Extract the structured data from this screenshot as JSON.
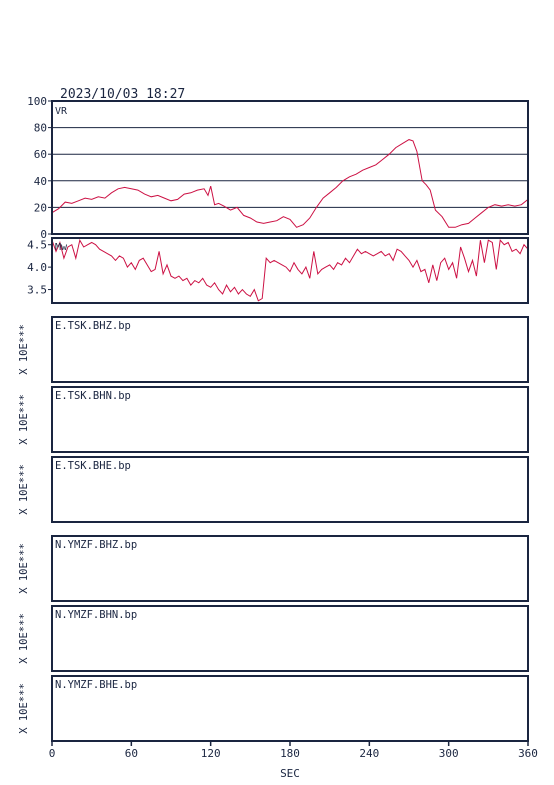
{
  "header": {
    "timestamp": "2023/10/03  18:27"
  },
  "colors": {
    "frame": "#1a2540",
    "trace": "#cc1144",
    "grid": "#1a2540",
    "background": "#ffffff"
  },
  "x_axis": {
    "label": "SEC",
    "ticks": [
      "0",
      "60",
      "120",
      "180",
      "240",
      "300",
      "360"
    ]
  },
  "chart_data": [
    {
      "type": "line",
      "label": "VR",
      "ylim": [
        0,
        100
      ],
      "y_ticks": [
        "0",
        "20",
        "40",
        "60",
        "80",
        "100"
      ],
      "grid": true,
      "xlim": [
        0,
        360
      ],
      "x": [
        0,
        5,
        10,
        15,
        20,
        25,
        30,
        35,
        40,
        45,
        50,
        55,
        60,
        65,
        70,
        75,
        80,
        85,
        90,
        95,
        100,
        105,
        110,
        115,
        118,
        120,
        123,
        126,
        130,
        135,
        140,
        145,
        150,
        155,
        160,
        165,
        170,
        175,
        180,
        185,
        190,
        195,
        200,
        205,
        210,
        215,
        220,
        225,
        230,
        235,
        240,
        245,
        250,
        255,
        260,
        265,
        270,
        273,
        276,
        280,
        283,
        286,
        290,
        295,
        300,
        305,
        310,
        315,
        320,
        325,
        330,
        335,
        340,
        345,
        350,
        355,
        360
      ],
      "y": [
        16,
        19,
        24,
        23,
        25,
        27,
        26,
        28,
        27,
        31,
        34,
        35,
        34,
        33,
        30,
        28,
        29,
        27,
        25,
        26,
        30,
        31,
        33,
        34,
        29,
        36,
        22,
        23,
        21,
        18,
        20,
        14,
        12,
        9,
        8,
        9,
        10,
        13,
        11,
        5,
        7,
        12,
        20,
        27,
        31,
        35,
        40,
        43,
        45,
        48,
        50,
        52,
        56,
        60,
        65,
        68,
        71,
        70,
        62,
        40,
        37,
        33,
        18,
        13,
        5,
        5,
        7,
        8,
        12,
        16,
        20,
        22,
        21,
        22,
        21,
        22,
        26
      ]
    },
    {
      "type": "line",
      "label": "Mw",
      "ylim": [
        3.2,
        4.65
      ],
      "y_ticks": [
        "3.5",
        "4.0",
        "4.5"
      ],
      "grid": false,
      "xlim": [
        0,
        360
      ],
      "x": [
        0,
        3,
        6,
        9,
        12,
        15,
        18,
        21,
        24,
        27,
        30,
        33,
        36,
        39,
        42,
        45,
        48,
        51,
        54,
        57,
        60,
        63,
        66,
        69,
        72,
        75,
        78,
        81,
        84,
        87,
        90,
        93,
        96,
        99,
        102,
        105,
        108,
        111,
        114,
        117,
        120,
        123,
        126,
        129,
        132,
        135,
        138,
        141,
        144,
        147,
        150,
        153,
        156,
        159,
        162,
        165,
        168,
        171,
        174,
        177,
        180,
        183,
        186,
        189,
        192,
        195,
        198,
        201,
        204,
        207,
        210,
        213,
        216,
        219,
        222,
        225,
        228,
        231,
        234,
        237,
        240,
        243,
        246,
        249,
        252,
        255,
        258,
        261,
        264,
        267,
        270,
        273,
        276,
        279,
        282,
        285,
        288,
        291,
        294,
        297,
        300,
        303,
        306,
        309,
        312,
        315,
        318,
        321,
        324,
        327,
        330,
        333,
        336,
        339,
        342,
        345,
        348,
        351,
        354,
        357,
        360
      ],
      "y": [
        4.6,
        4.35,
        4.55,
        4.2,
        4.45,
        4.5,
        4.2,
        4.6,
        4.45,
        4.5,
        4.55,
        4.5,
        4.4,
        4.35,
        4.3,
        4.25,
        4.15,
        4.25,
        4.2,
        4.0,
        4.1,
        3.95,
        4.15,
        4.2,
        4.05,
        3.9,
        3.95,
        4.35,
        3.85,
        4.05,
        3.8,
        3.75,
        3.8,
        3.7,
        3.75,
        3.6,
        3.7,
        3.65,
        3.75,
        3.6,
        3.55,
        3.65,
        3.5,
        3.4,
        3.6,
        3.45,
        3.55,
        3.4,
        3.5,
        3.4,
        3.35,
        3.5,
        3.25,
        3.3,
        4.2,
        4.1,
        4.15,
        4.1,
        4.05,
        4.0,
        3.9,
        4.1,
        3.95,
        3.85,
        4.0,
        3.75,
        4.35,
        3.85,
        3.95,
        4.0,
        4.05,
        3.95,
        4.1,
        4.05,
        4.2,
        4.1,
        4.25,
        4.4,
        4.3,
        4.35,
        4.3,
        4.25,
        4.3,
        4.35,
        4.25,
        4.3,
        4.15,
        4.4,
        4.35,
        4.25,
        4.15,
        4.0,
        4.15,
        3.9,
        3.95,
        3.65,
        4.05,
        3.7,
        4.1,
        4.2,
        3.95,
        4.1,
        3.75,
        4.45,
        4.2,
        3.9,
        4.15,
        3.8,
        4.6,
        4.1,
        4.6,
        4.55,
        3.95,
        4.6,
        4.5,
        4.55,
        4.35,
        4.4,
        4.3,
        4.5,
        4.4
      ]
    }
  ],
  "waveform_panels": [
    {
      "channel": "E.TSK.BHZ.bp",
      "scale_label": "X 10E***"
    },
    {
      "channel": "E.TSK.BHN.bp",
      "scale_label": "X 10E***"
    },
    {
      "channel": "E.TSK.BHE.bp",
      "scale_label": "X 10E***"
    },
    {
      "channel": "N.YMZF.BHZ.bp",
      "scale_label": "X 10E***"
    },
    {
      "channel": "N.YMZF.BHN.bp",
      "scale_label": "X 10E***"
    },
    {
      "channel": "N.YMZF.BHE.bp",
      "scale_label": "X 10E***"
    }
  ]
}
